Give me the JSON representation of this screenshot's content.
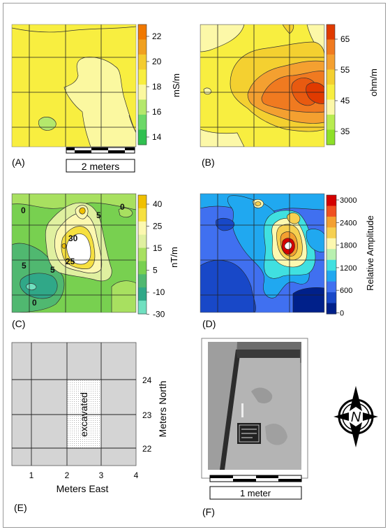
{
  "panels": {
    "A": {
      "label": "(A)",
      "unit": "mS/m",
      "ticks": [
        "22",
        "20",
        "18",
        "16",
        "14"
      ],
      "colors": [
        "#f07800",
        "#f0a020",
        "#f4cc30",
        "#f8ee40",
        "#fbf8a0",
        "#b4e86c",
        "#6cd868",
        "#30c050"
      ]
    },
    "B": {
      "label": "(B)",
      "unit": "ohm/m",
      "ticks": [
        "65",
        "55",
        "45",
        "35"
      ],
      "colors": [
        "#e03a00",
        "#f07a20",
        "#f4a030",
        "#f4d030",
        "#f8ee40",
        "#fcf8a8",
        "#b8ec50",
        "#8ee028"
      ]
    },
    "C": {
      "label": "(C)",
      "unit": "nT/m",
      "ticks": [
        "40",
        "25",
        "15",
        "5",
        "-10",
        "-30"
      ],
      "colors": [
        "#f0c000",
        "#f6e040",
        "#fcf8b0",
        "#e0f0a0",
        "#a8e060",
        "#78d050",
        "#50b870",
        "#30a888",
        "#70e0c0"
      ],
      "contour_labels": [
        "0",
        "5",
        "0",
        "30",
        "25",
        "5",
        "5",
        "0"
      ]
    },
    "D": {
      "label": "(D)",
      "unit": "Relative Amplitude",
      "ticks": [
        "3000",
        "2400",
        "1800",
        "1200",
        "600",
        "0"
      ],
      "colors": [
        "#d40000",
        "#f05020",
        "#f4a030",
        "#f6d050",
        "#fcf8b0",
        "#b8f0b0",
        "#40e0e0",
        "#20a8f0",
        "#4070f0",
        "#1848c8",
        "#00208a"
      ]
    },
    "E": {
      "label": "(E)",
      "excavated_label": "excavated",
      "x_ticks": [
        "1",
        "2",
        "3",
        "4"
      ],
      "y_ticks": [
        "24",
        "23",
        "22"
      ],
      "x_title": "Meters East",
      "y_title": "Meters North"
    },
    "F": {
      "label": "(F)",
      "scale_label": "1 meter",
      "north_letter": "N"
    }
  },
  "scale_bar_a": {
    "label": "2 meters"
  }
}
